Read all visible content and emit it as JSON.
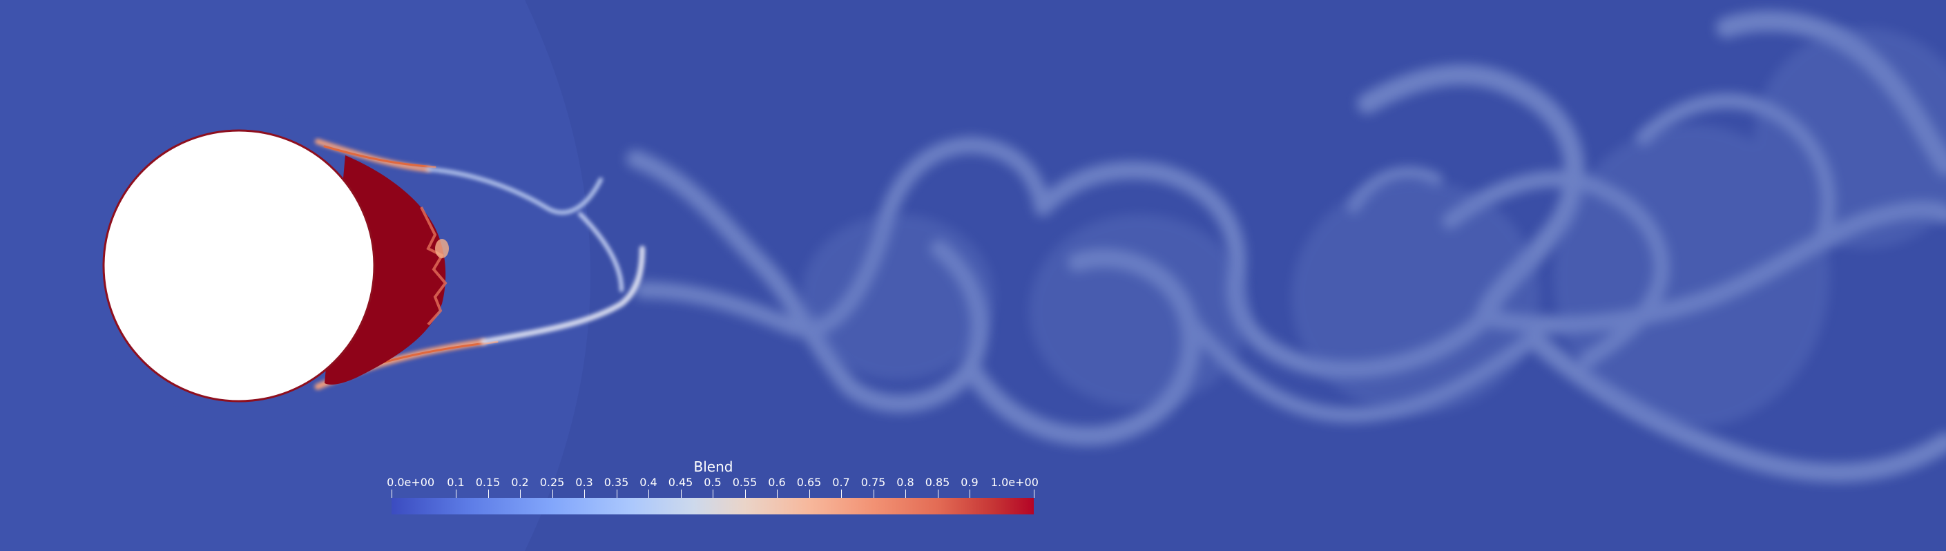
{
  "colors": {
    "background": "#3a4ea6",
    "cylinder": "#ffffff",
    "cylinder_edge": "#8e0f1e",
    "high_blend": "#8f0319",
    "wake": "#7e92cf",
    "colormap": [
      "#3b4cc0",
      "#82a6fb",
      "#dddddd",
      "#f7b89c",
      "#b40426"
    ]
  },
  "legend": {
    "title": "Blend",
    "ticks": [
      {
        "label": "0.0e+00",
        "value": 0.0
      },
      {
        "label": "0.1",
        "value": 0.1
      },
      {
        "label": "0.15",
        "value": 0.15
      },
      {
        "label": "0.2",
        "value": 0.2
      },
      {
        "label": "0.25",
        "value": 0.25
      },
      {
        "label": "0.3",
        "value": 0.3
      },
      {
        "label": "0.35",
        "value": 0.35
      },
      {
        "label": "0.4",
        "value": 0.4
      },
      {
        "label": "0.45",
        "value": 0.45
      },
      {
        "label": "0.5",
        "value": 0.5
      },
      {
        "label": "0.55",
        "value": 0.55
      },
      {
        "label": "0.6",
        "value": 0.6
      },
      {
        "label": "0.65",
        "value": 0.65
      },
      {
        "label": "0.7",
        "value": 0.7
      },
      {
        "label": "0.75",
        "value": 0.75
      },
      {
        "label": "0.8",
        "value": 0.8
      },
      {
        "label": "0.85",
        "value": 0.85
      },
      {
        "label": "0.9",
        "value": 0.9
      },
      {
        "label": "1.0e+00",
        "value": 1.0
      }
    ]
  }
}
